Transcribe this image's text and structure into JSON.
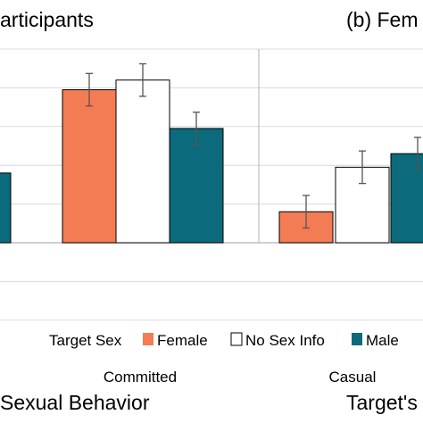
{
  "chart_data": [
    {
      "type": "bar",
      "title": "articipants",
      "xlabel": "Sexual Behavior",
      "categories": [
        "",
        "Committed"
      ],
      "series": [
        {
          "name": "Female",
          "values": [
            null,
            3.95
          ]
        },
        {
          "name": "No Sex Info",
          "values": [
            null,
            4.2
          ]
        },
        {
          "name": "Male",
          "values": [
            1.8,
            2.95
          ]
        }
      ],
      "errors": {
        "Female": [
          null,
          0.42
        ],
        "No Sex Info": [
          null,
          0.42
        ],
        "Male": [
          null,
          0.42
        ]
      },
      "ylim": [
        -2,
        5
      ],
      "grid": true
    },
    {
      "type": "bar",
      "title": "(b) Fem",
      "xlabel": "Target's",
      "categories": [
        "Casual"
      ],
      "series": [
        {
          "name": "Female",
          "values": [
            0.8
          ]
        },
        {
          "name": "No Sex Info",
          "values": [
            1.95
          ]
        },
        {
          "name": "Male",
          "values": [
            2.3
          ]
        }
      ],
      "errors": {
        "Female": [
          0.42
        ],
        "No Sex Info": [
          0.42
        ],
        "Male": [
          0.42
        ]
      },
      "ylim": [
        -2,
        5
      ],
      "grid": true
    }
  ],
  "legend": {
    "title": "Target Sex",
    "entries": [
      "Female",
      "No Sex Info",
      "Male"
    ]
  },
  "colors": {
    "Female": "#f47c55",
    "No Sex Info": "#ffffff",
    "Male": "#0b6a7c",
    "grid": "#d9d9d9",
    "axis": "#bfbfbf"
  }
}
